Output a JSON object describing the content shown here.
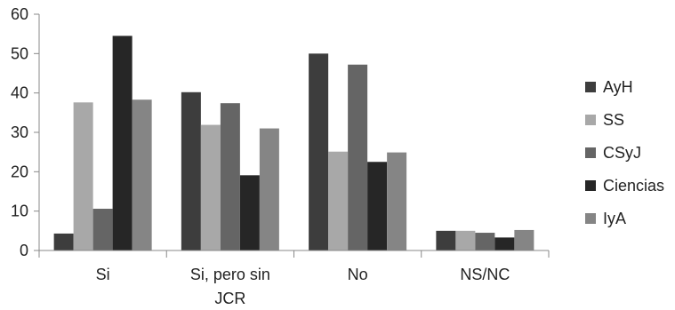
{
  "chart_data": {
    "type": "bar",
    "categories": [
      "Si",
      "Si, pero sin JCR",
      "No",
      "NS/NC"
    ],
    "category_lines": [
      [
        "Si"
      ],
      [
        "Si, pero sin",
        "JCR"
      ],
      [
        "No"
      ],
      [
        "NS/NC"
      ]
    ],
    "series": [
      {
        "name": "AyH",
        "color": "#3d3d3d",
        "values": [
          4.3,
          40.2,
          50.0,
          5.0
        ]
      },
      {
        "name": "SS",
        "color": "#a8a8a8",
        "values": [
          37.6,
          31.9,
          25.1,
          5.0
        ]
      },
      {
        "name": "CSyJ",
        "color": "#656565",
        "values": [
          10.6,
          37.4,
          47.2,
          4.5
        ]
      },
      {
        "name": "Ciencias",
        "color": "#262626",
        "values": [
          54.5,
          19.1,
          22.5,
          3.3
        ]
      },
      {
        "name": "IyA",
        "color": "#858585",
        "values": [
          38.3,
          31.0,
          24.9,
          5.2
        ]
      }
    ],
    "ylim": [
      0,
      60
    ],
    "yticks": [
      "0",
      "10",
      "20",
      "30",
      "40",
      "50",
      "60"
    ],
    "grid": false,
    "legend_position": "right",
    "title": "",
    "xlabel": "",
    "ylabel": ""
  }
}
